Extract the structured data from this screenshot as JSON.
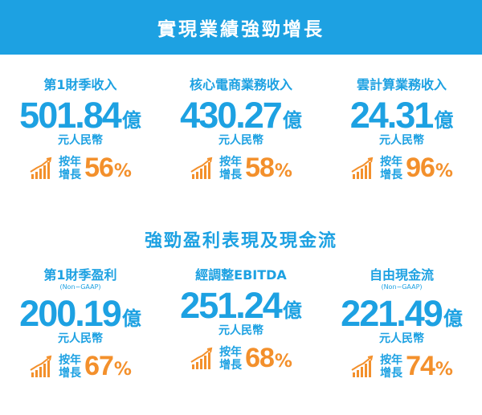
{
  "banner": {
    "title": "實現業績強勁增長"
  },
  "section2": {
    "title": "強勁盈利表現及現金流"
  },
  "growth_label_line1": "按年",
  "growth_label_line2": "增長",
  "metrics": [
    {
      "label": "第1財季收入",
      "sub": "",
      "value": "501.84",
      "unit": "億",
      "currency": "元人民幣",
      "growth": "56",
      "growth_sign": "%"
    },
    {
      "label": "核心電商業務收入",
      "sub": "",
      "value": "430.27",
      "unit": "億",
      "currency": "元人民幣",
      "growth": "58",
      "growth_sign": "%"
    },
    {
      "label": "雲計算業務收入",
      "sub": "",
      "value": "24.31",
      "unit": "億",
      "currency": "元人民幣",
      "growth": "96",
      "growth_sign": "%"
    },
    {
      "label": "第1財季盈利",
      "sub": "(Non−GAAP)",
      "value": "200.19",
      "unit": "億",
      "currency": "元人民幣",
      "growth": "67",
      "growth_sign": "%"
    },
    {
      "label": "經調整EBITDA",
      "sub": "",
      "value": "251.24",
      "unit": "億",
      "currency": "元人民幣",
      "growth": "68",
      "growth_sign": "%"
    },
    {
      "label": "自由現金流",
      "sub": "(Non−GAAP)",
      "value": "221.49",
      "unit": "億",
      "currency": "元人民幣",
      "growth": "74",
      "growth_sign": "%"
    }
  ],
  "colors": {
    "brand_blue": "#1da1e2",
    "growth_orange": "#f3902c"
  },
  "icon": "growth-chart-icon"
}
